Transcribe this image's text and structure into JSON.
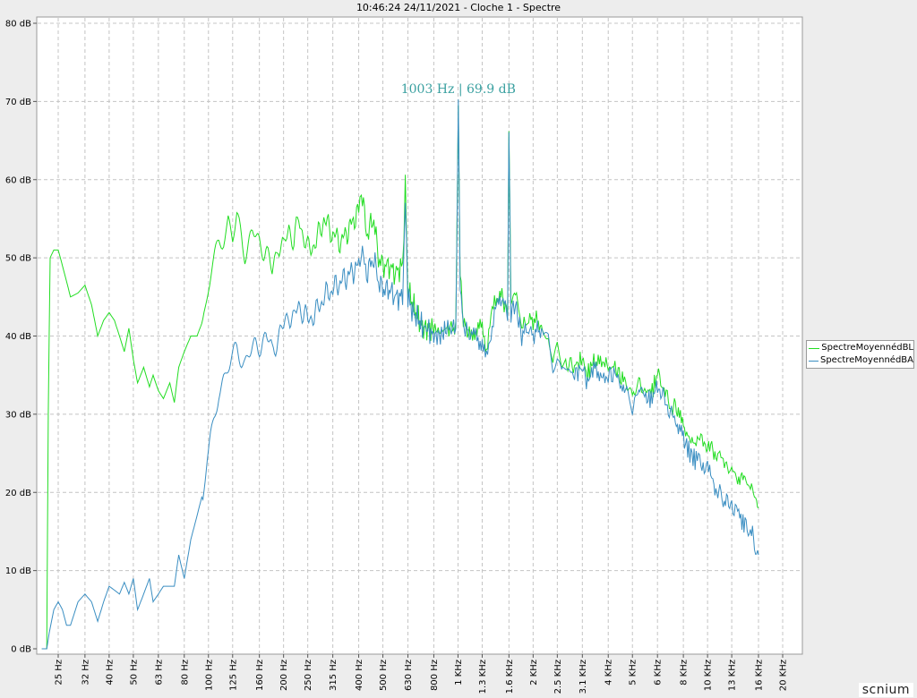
{
  "chart_data": {
    "type": "line",
    "title": "10:46:24 24/11/2021 - Cloche 1 - Spectre",
    "xlabel": "",
    "ylabel": "",
    "x_scale": "log",
    "ylim": [
      0,
      80
    ],
    "y_ticks": [
      "0 dB",
      "10 dB",
      "20 dB",
      "30 dB",
      "40 dB",
      "50 dB",
      "60 dB",
      "70 dB",
      "80 dB"
    ],
    "x_ticks": [
      {
        "label": "25 Hz",
        "hz": 25
      },
      {
        "label": "32 Hz",
        "hz": 32
      },
      {
        "label": "40 Hz",
        "hz": 40
      },
      {
        "label": "50 Hz",
        "hz": 50
      },
      {
        "label": "63 Hz",
        "hz": 63
      },
      {
        "label": "80 Hz",
        "hz": 80
      },
      {
        "label": "100 Hz",
        "hz": 100
      },
      {
        "label": "125 Hz",
        "hz": 125
      },
      {
        "label": "160 Hz",
        "hz": 160
      },
      {
        "label": "200 Hz",
        "hz": 200
      },
      {
        "label": "250 Hz",
        "hz": 250
      },
      {
        "label": "315 Hz",
        "hz": 315
      },
      {
        "label": "400 Hz",
        "hz": 400
      },
      {
        "label": "500 Hz",
        "hz": 500
      },
      {
        "label": "630 Hz",
        "hz": 630
      },
      {
        "label": "800 Hz",
        "hz": 800
      },
      {
        "label": "1 KHz",
        "hz": 1000
      },
      {
        "label": "1.3 KHz",
        "hz": 1250
      },
      {
        "label": "1.6 KHz",
        "hz": 1600
      },
      {
        "label": "2 KHz",
        "hz": 2000
      },
      {
        "label": "2.5 KHz",
        "hz": 2500
      },
      {
        "label": "3.1 KHz",
        "hz": 3150
      },
      {
        "label": "4 KHz",
        "hz": 4000
      },
      {
        "label": "5 KHz",
        "hz": 5000
      },
      {
        "label": "6 KHz",
        "hz": 6300
      },
      {
        "label": "8 KHz",
        "hz": 8000
      },
      {
        "label": "10 KHz",
        "hz": 10000
      },
      {
        "label": "13 KHz",
        "hz": 12500
      },
      {
        "label": "16 KHz",
        "hz": 16000
      },
      {
        "label": "20 KHz",
        "hz": 20000
      }
    ],
    "grid": true,
    "legend_position": "right",
    "annotation": {
      "text": "1003 Hz | 69.9 dB",
      "x": 1003,
      "y": 69.9
    },
    "series": [
      {
        "name": "SpectreMoyennédBL",
        "color": "#22dd22",
        "points": [
          [
            21.5,
            0
          ],
          [
            22.5,
            0
          ],
          [
            22.8,
            30
          ],
          [
            23.2,
            50
          ],
          [
            24,
            51
          ],
          [
            25,
            51
          ],
          [
            26,
            49
          ],
          [
            28,
            45
          ],
          [
            30,
            45.5
          ],
          [
            32,
            46.5
          ],
          [
            34,
            44
          ],
          [
            36,
            40
          ],
          [
            38,
            42
          ],
          [
            40,
            43
          ],
          [
            42,
            42
          ],
          [
            44,
            40
          ],
          [
            46,
            38
          ],
          [
            48,
            41
          ],
          [
            50,
            37
          ],
          [
            52,
            34
          ],
          [
            55,
            36
          ],
          [
            58,
            33.5
          ],
          [
            60,
            35
          ],
          [
            63,
            33
          ],
          [
            66,
            32
          ],
          [
            70,
            34
          ],
          [
            73,
            31.5
          ],
          [
            76,
            36
          ],
          [
            80,
            38
          ],
          [
            85,
            40
          ],
          [
            90,
            40
          ],
          [
            95,
            42
          ],
          [
            100,
            46
          ],
          [
            105,
            49
          ],
          [
            110,
            52
          ],
          [
            115,
            53
          ],
          [
            120,
            55
          ],
          [
            125,
            52
          ],
          [
            130,
            55
          ],
          [
            140,
            51
          ],
          [
            150,
            53
          ],
          [
            160,
            52
          ],
          [
            170,
            51
          ],
          [
            180,
            48
          ],
          [
            190,
            52
          ],
          [
            200,
            51
          ],
          [
            210,
            54
          ],
          [
            220,
            52
          ],
          [
            230,
            55
          ],
          [
            250,
            51
          ],
          [
            270,
            52
          ],
          [
            290,
            55
          ],
          [
            315,
            53
          ],
          [
            340,
            52
          ],
          [
            370,
            54
          ],
          [
            400,
            56
          ],
          [
            410,
            59
          ],
          [
            430,
            53
          ],
          [
            460,
            55
          ],
          [
            480,
            50
          ],
          [
            500,
            49
          ],
          [
            530,
            49
          ],
          [
            560,
            48
          ],
          [
            600,
            49
          ],
          [
            615,
            59
          ],
          [
            630,
            46
          ],
          [
            660,
            44
          ],
          [
            700,
            42
          ],
          [
            720,
            41
          ],
          [
            750,
            41
          ],
          [
            800,
            41
          ],
          [
            850,
            40.5
          ],
          [
            900,
            41
          ],
          [
            950,
            41
          ],
          [
            980,
            41
          ],
          [
            1003,
            69
          ],
          [
            1020,
            48
          ],
          [
            1050,
            42
          ],
          [
            1080,
            41
          ],
          [
            1120,
            40
          ],
          [
            1180,
            41
          ],
          [
            1250,
            41
          ],
          [
            1300,
            38
          ],
          [
            1400,
            45
          ],
          [
            1500,
            45
          ],
          [
            1580,
            43
          ],
          [
            1600,
            66
          ],
          [
            1630,
            44
          ],
          [
            1700,
            46
          ],
          [
            1800,
            41
          ],
          [
            1900,
            42
          ],
          [
            2000,
            42
          ],
          [
            2100,
            42
          ],
          [
            2200,
            40
          ],
          [
            2300,
            40
          ],
          [
            2400,
            36
          ],
          [
            2500,
            38
          ],
          [
            2600,
            36
          ],
          [
            2700,
            37
          ],
          [
            2900,
            36
          ],
          [
            3150,
            37
          ],
          [
            3300,
            35
          ],
          [
            3500,
            37
          ],
          [
            3800,
            36
          ],
          [
            4000,
            36
          ],
          [
            4300,
            36
          ],
          [
            4600,
            34
          ],
          [
            5000,
            32
          ],
          [
            5300,
            35
          ],
          [
            5600,
            33
          ],
          [
            6000,
            33
          ],
          [
            6300,
            35
          ],
          [
            6700,
            33
          ],
          [
            7100,
            31
          ],
          [
            7500,
            31
          ],
          [
            8000,
            28
          ],
          [
            8500,
            27
          ],
          [
            9000,
            26
          ],
          [
            9500,
            27
          ],
          [
            10000,
            26
          ],
          [
            10600,
            25
          ],
          [
            11200,
            25
          ],
          [
            11800,
            24
          ],
          [
            12500,
            23
          ],
          [
            13200,
            22
          ],
          [
            14000,
            22
          ],
          [
            15000,
            21
          ],
          [
            16000,
            18
          ]
        ]
      },
      {
        "name": "SpectreMoyennédBA",
        "color": "#3a8ec2",
        "points": [
          [
            21.5,
            0
          ],
          [
            22.5,
            0
          ],
          [
            23,
            2
          ],
          [
            24,
            5
          ],
          [
            25,
            6
          ],
          [
            26,
            5
          ],
          [
            27,
            3
          ],
          [
            28,
            3
          ],
          [
            30,
            6
          ],
          [
            32,
            7
          ],
          [
            34,
            6
          ],
          [
            36,
            3.5
          ],
          [
            38,
            6
          ],
          [
            40,
            8
          ],
          [
            42,
            7.5
          ],
          [
            44,
            7
          ],
          [
            46,
            8.5
          ],
          [
            48,
            7
          ],
          [
            50,
            9
          ],
          [
            52,
            5
          ],
          [
            55,
            7
          ],
          [
            58,
            9
          ],
          [
            60,
            6
          ],
          [
            63,
            7
          ],
          [
            66,
            8
          ],
          [
            70,
            8
          ],
          [
            73,
            8
          ],
          [
            76,
            12
          ],
          [
            80,
            9
          ],
          [
            85,
            14
          ],
          [
            90,
            17
          ],
          [
            95,
            20
          ],
          [
            100,
            24
          ],
          [
            105,
            29
          ],
          [
            110,
            33
          ],
          [
            115,
            35
          ],
          [
            120,
            36
          ],
          [
            125,
            37
          ],
          [
            130,
            38
          ],
          [
            140,
            37
          ],
          [
            150,
            38
          ],
          [
            160,
            39
          ],
          [
            170,
            40
          ],
          [
            180,
            38
          ],
          [
            190,
            40
          ],
          [
            200,
            41
          ],
          [
            210,
            43
          ],
          [
            220,
            42
          ],
          [
            230,
            44
          ],
          [
            250,
            42
          ],
          [
            270,
            43
          ],
          [
            290,
            45
          ],
          [
            315,
            46
          ],
          [
            340,
            47
          ],
          [
            370,
            48
          ],
          [
            400,
            49
          ],
          [
            410,
            51
          ],
          [
            430,
            48
          ],
          [
            460,
            50
          ],
          [
            480,
            47
          ],
          [
            500,
            46
          ],
          [
            530,
            46
          ],
          [
            560,
            45
          ],
          [
            600,
            45
          ],
          [
            615,
            57
          ],
          [
            630,
            45
          ],
          [
            660,
            43
          ],
          [
            700,
            42
          ],
          [
            720,
            41
          ],
          [
            750,
            41
          ],
          [
            800,
            40
          ],
          [
            850,
            40
          ],
          [
            900,
            41
          ],
          [
            950,
            41
          ],
          [
            980,
            41
          ],
          [
            1003,
            69.9
          ],
          [
            1020,
            47
          ],
          [
            1050,
            41
          ],
          [
            1080,
            41
          ],
          [
            1120,
            40
          ],
          [
            1180,
            40
          ],
          [
            1250,
            39
          ],
          [
            1300,
            37
          ],
          [
            1400,
            43
          ],
          [
            1500,
            45
          ],
          [
            1580,
            43
          ],
          [
            1600,
            66
          ],
          [
            1630,
            43
          ],
          [
            1700,
            44
          ],
          [
            1800,
            40
          ],
          [
            1900,
            41
          ],
          [
            2000,
            40
          ],
          [
            2100,
            41
          ],
          [
            2200,
            40
          ],
          [
            2300,
            39
          ],
          [
            2400,
            35
          ],
          [
            2500,
            37
          ],
          [
            2600,
            35
          ],
          [
            2700,
            36
          ],
          [
            2900,
            35
          ],
          [
            3150,
            36
          ],
          [
            3300,
            34
          ],
          [
            3500,
            36
          ],
          [
            3800,
            35
          ],
          [
            4000,
            35
          ],
          [
            4300,
            35
          ],
          [
            4600,
            33
          ],
          [
            5000,
            31
          ],
          [
            5300,
            34
          ],
          [
            5600,
            32
          ],
          [
            6000,
            32
          ],
          [
            6300,
            34
          ],
          [
            6700,
            32
          ],
          [
            7100,
            30
          ],
          [
            7500,
            29
          ],
          [
            8000,
            27
          ],
          [
            8500,
            25
          ],
          [
            9000,
            24
          ],
          [
            9500,
            24
          ],
          [
            10000,
            23
          ],
          [
            10600,
            21
          ],
          [
            11200,
            20
          ],
          [
            11800,
            19
          ],
          [
            12500,
            18
          ],
          [
            13200,
            17
          ],
          [
            14000,
            16
          ],
          [
            15000,
            15
          ],
          [
            16000,
            12
          ]
        ]
      }
    ]
  },
  "brand": "scnium"
}
